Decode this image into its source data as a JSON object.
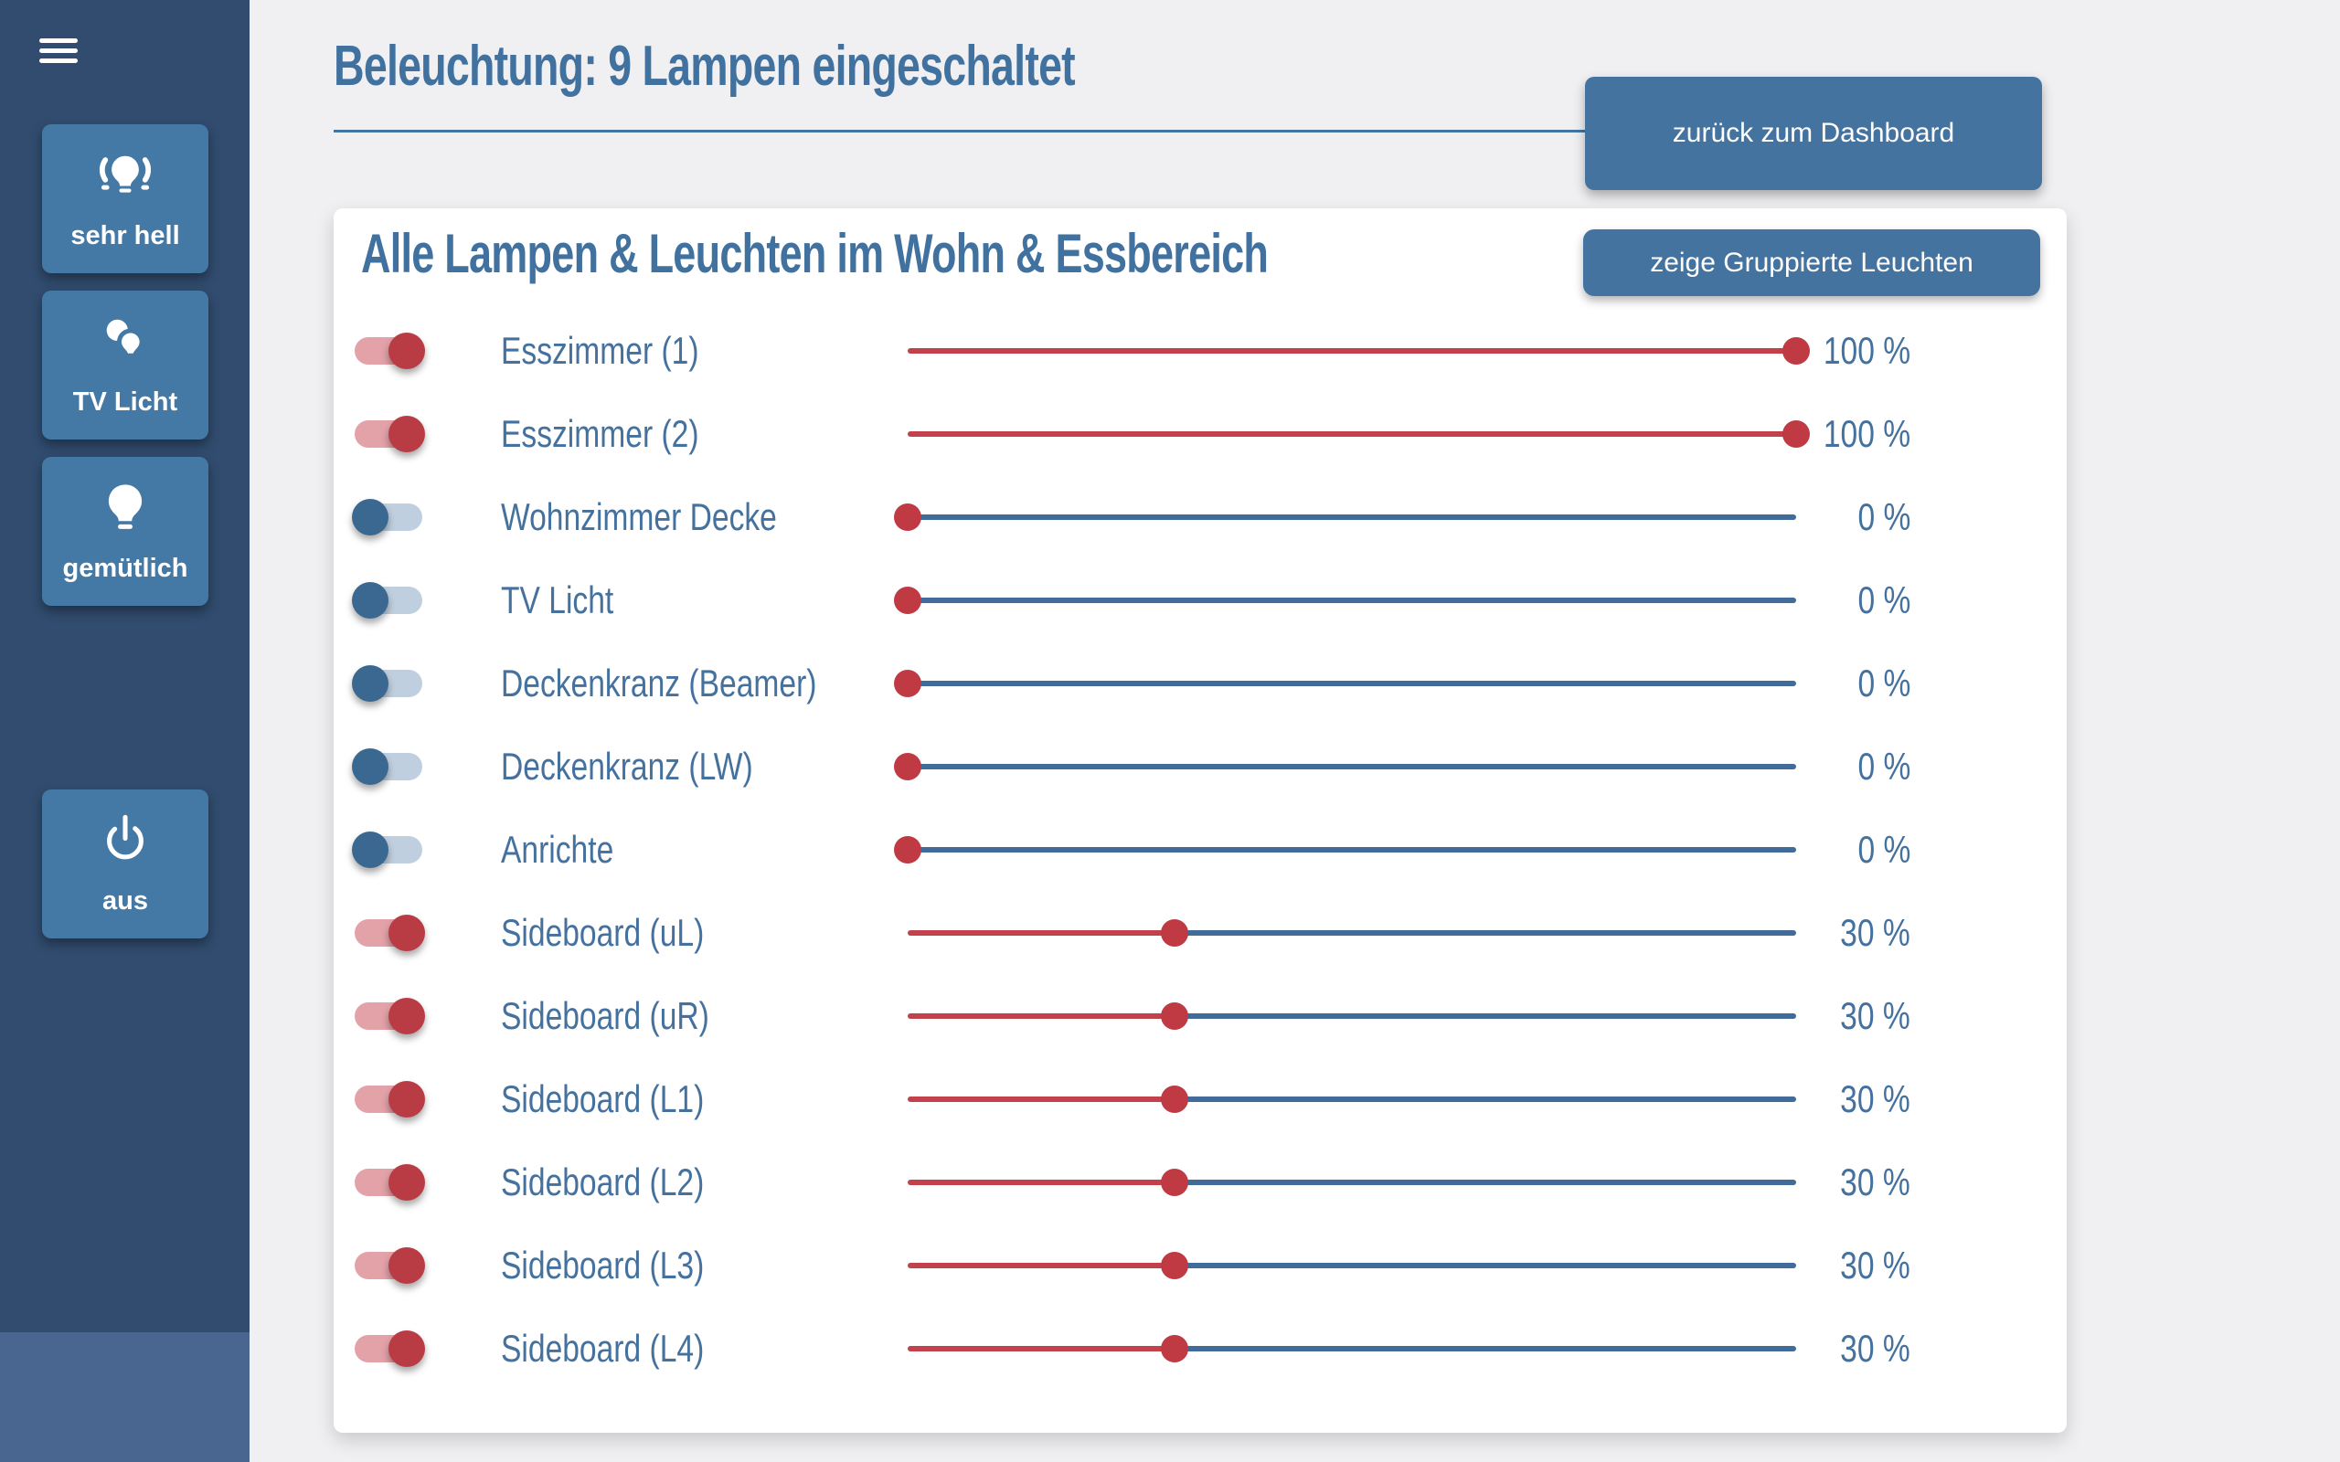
{
  "colors": {
    "accent_blue": "#44719e",
    "sidebar_bg": "#314c6f",
    "sidebar_strip": "#48668f",
    "sidebar_button": "#4579a5",
    "action_button": "#44739f",
    "toggle_on_knob": "#b93b44",
    "toggle_on_track": "#e2a2a8",
    "toggle_off_knob": "#3a6890",
    "toggle_off_track": "#c0cfdf",
    "slider_active_red": "#c2414a",
    "slider_inactive_blue": "#416b98",
    "slider_dot_red": "#bf3a43",
    "page_bg": "#f0eff1",
    "card_bg": "#ffffff"
  },
  "sidebar": {
    "scenes": [
      {
        "label": "sehr hell",
        "icon": "bulb-bright-icon"
      },
      {
        "label": "TV Licht",
        "icon": "bulbs-double-icon"
      },
      {
        "label": "gemütlich",
        "icon": "bulb-icon"
      },
      {
        "label": "aus",
        "icon": "power-icon"
      }
    ]
  },
  "header": {
    "title": "Beleuchtung: 9 Lampen eingeschaltet",
    "back_button_label": "zurück zum Dashboard"
  },
  "panel": {
    "title": "Alle Lampen & Leuchten im Wohn & Essbereich",
    "group_button_label": "zeige Gruppierte Leuchten",
    "lights": [
      {
        "name": "Esszimmer (1)",
        "on": true,
        "percent": 100,
        "percent_label": "100 %"
      },
      {
        "name": "Esszimmer (2)",
        "on": true,
        "percent": 100,
        "percent_label": "100 %"
      },
      {
        "name": "Wohnzimmer Decke",
        "on": false,
        "percent": 0,
        "percent_label": "0 %"
      },
      {
        "name": "TV Licht",
        "on": false,
        "percent": 0,
        "percent_label": "0 %"
      },
      {
        "name": "Deckenkranz (Beamer)",
        "on": false,
        "percent": 0,
        "percent_label": "0 %"
      },
      {
        "name": "Deckenkranz (LW)",
        "on": false,
        "percent": 0,
        "percent_label": "0 %"
      },
      {
        "name": "Anrichte",
        "on": false,
        "percent": 0,
        "percent_label": "0 %"
      },
      {
        "name": "Sideboard (uL)",
        "on": true,
        "percent": 30,
        "percent_label": "30 %"
      },
      {
        "name": "Sideboard (uR)",
        "on": true,
        "percent": 30,
        "percent_label": "30 %"
      },
      {
        "name": "Sideboard (L1)",
        "on": true,
        "percent": 30,
        "percent_label": "30 %"
      },
      {
        "name": "Sideboard (L2)",
        "on": true,
        "percent": 30,
        "percent_label": "30 %"
      },
      {
        "name": "Sideboard (L3)",
        "on": true,
        "percent": 30,
        "percent_label": "30 %"
      },
      {
        "name": "Sideboard (L4)",
        "on": true,
        "percent": 30,
        "percent_label": "30 %"
      }
    ]
  }
}
